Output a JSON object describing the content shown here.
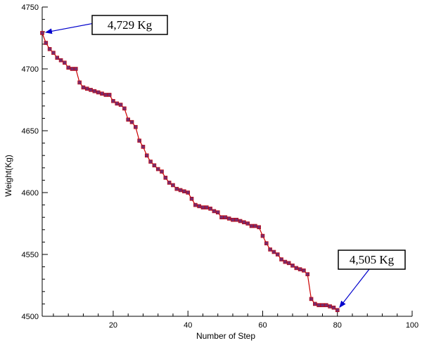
{
  "chart_data": {
    "type": "line",
    "xlabel": "Number of Step",
    "ylabel": "Weight(Kg)",
    "xlim": [
      1,
      100
    ],
    "ylim": [
      4500,
      4750
    ],
    "x_ticks": [
      20,
      40,
      60,
      80,
      100
    ],
    "y_ticks": [
      4500,
      4550,
      4600,
      4650,
      4700,
      4750
    ],
    "grid": false,
    "line_color": "#cc0000",
    "marker_color": "#7a2a6a",
    "annotation_color": "#0000cc",
    "series": [
      {
        "x": [
          1,
          2,
          3,
          4,
          5,
          6,
          7,
          8,
          9,
          10,
          11,
          12,
          13,
          14,
          15,
          16,
          17,
          18,
          19,
          20,
          21,
          22,
          23,
          24,
          25,
          26,
          27,
          28,
          29,
          30,
          31,
          32,
          33,
          34,
          35,
          36,
          37,
          38,
          39,
          40,
          41,
          42,
          43,
          44,
          45,
          46,
          47,
          48,
          49,
          50,
          51,
          52,
          53,
          54,
          55,
          56,
          57,
          58,
          59,
          60,
          61,
          62,
          63,
          64,
          65,
          66,
          67,
          68,
          69,
          70,
          71,
          72,
          73,
          74,
          75,
          76,
          77,
          78,
          79,
          80
        ],
        "values": [
          4729,
          4721,
          4716,
          4713,
          4709,
          4707,
          4705,
          4701,
          4700,
          4700,
          4689,
          4685,
          4684,
          4683,
          4682,
          4681,
          4680,
          4679,
          4679,
          4674,
          4672,
          4671,
          4668,
          4659,
          4657,
          4653,
          4642,
          4637,
          4630,
          4625,
          4622,
          4619,
          4617,
          4612,
          4608,
          4606,
          4603,
          4602,
          4601,
          4600,
          4595,
          4590,
          4589,
          4588,
          4588,
          4587,
          4585,
          4584,
          4580,
          4580,
          4579,
          4578,
          4578,
          4577,
          4576,
          4575,
          4573,
          4573,
          4572,
          4565,
          4559,
          4554,
          4552,
          4550,
          4546,
          4544,
          4543,
          4541,
          4539,
          4538,
          4537,
          4534,
          4514,
          4510,
          4509,
          4509,
          4509,
          4508,
          4507,
          4505
        ]
      }
    ],
    "annotations": [
      {
        "text": "4,729 Kg",
        "x": 1,
        "y": 4729
      },
      {
        "text": "4,505 Kg",
        "x": 80,
        "y": 4505
      }
    ]
  }
}
